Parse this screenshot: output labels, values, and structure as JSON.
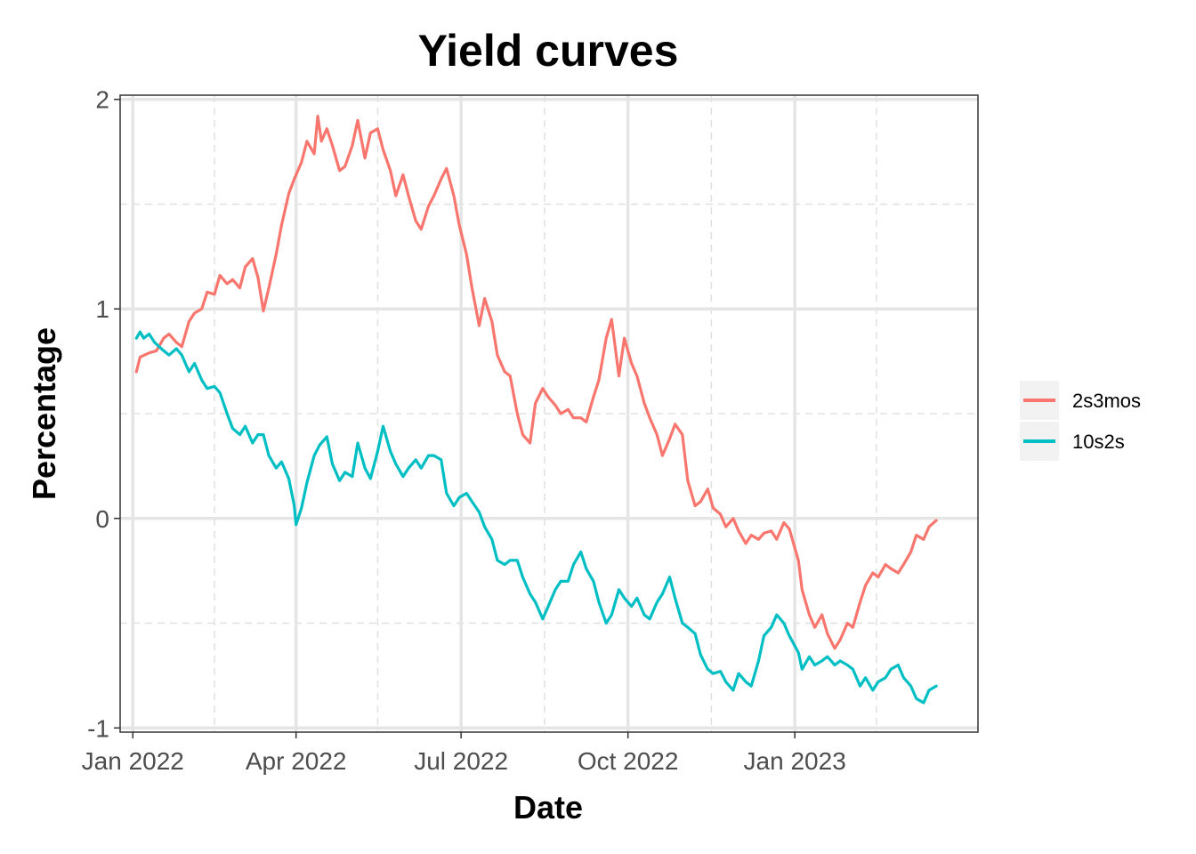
{
  "chart_data": {
    "type": "line",
    "title": "Yield curves",
    "xlabel": "Date",
    "ylabel": "Percentage",
    "x_range": [
      "2021-12-25",
      "2023-04-12"
    ],
    "xlim_days": [
      0,
      473
    ],
    "ylim": [
      -1.02,
      2.02
    ],
    "x_ticks": [
      {
        "label": "Jan 2022",
        "date": "2022-01-01"
      },
      {
        "label": "Apr 2022",
        "date": "2022-04-01"
      },
      {
        "label": "Jul 2022",
        "date": "2022-07-01"
      },
      {
        "label": "Oct 2022",
        "date": "2022-10-01"
      },
      {
        "label": "Jan 2023",
        "date": "2023-01-01"
      }
    ],
    "x_minor_ticks": [
      "2022-02-15",
      "2022-05-16",
      "2022-08-16",
      "2022-11-16",
      "2023-02-15"
    ],
    "y_ticks": [
      {
        "label": "-1",
        "value": -1
      },
      {
        "label": "0",
        "value": 0
      },
      {
        "label": "1",
        "value": 1
      },
      {
        "label": "2",
        "value": 2
      }
    ],
    "y_minor_ticks": [
      -0.5,
      0.5,
      1.5
    ],
    "grid": true,
    "legend_position": "right",
    "series": [
      {
        "name": "2s3mos",
        "color": "#F8766D",
        "points": [
          [
            "2022-01-03",
            0.7
          ],
          [
            "2022-01-05",
            0.77
          ],
          [
            "2022-01-10",
            0.79
          ],
          [
            "2022-01-14",
            0.8
          ],
          [
            "2022-01-18",
            0.86
          ],
          [
            "2022-01-21",
            0.88
          ],
          [
            "2022-01-25",
            0.84
          ],
          [
            "2022-01-28",
            0.82
          ],
          [
            "2022-02-01",
            0.94
          ],
          [
            "2022-02-04",
            0.98
          ],
          [
            "2022-02-08",
            1.0
          ],
          [
            "2022-02-11",
            1.08
          ],
          [
            "2022-02-15",
            1.07
          ],
          [
            "2022-02-18",
            1.16
          ],
          [
            "2022-02-22",
            1.12
          ],
          [
            "2022-02-25",
            1.14
          ],
          [
            "2022-03-01",
            1.1
          ],
          [
            "2022-03-04",
            1.2
          ],
          [
            "2022-03-08",
            1.24
          ],
          [
            "2022-03-11",
            1.15
          ],
          [
            "2022-03-14",
            0.99
          ],
          [
            "2022-03-17",
            1.1
          ],
          [
            "2022-03-21",
            1.26
          ],
          [
            "2022-03-24",
            1.4
          ],
          [
            "2022-03-28",
            1.55
          ],
          [
            "2022-03-31",
            1.62
          ],
          [
            "2022-04-04",
            1.7
          ],
          [
            "2022-04-07",
            1.8
          ],
          [
            "2022-04-11",
            1.74
          ],
          [
            "2022-04-13",
            1.92
          ],
          [
            "2022-04-15",
            1.8
          ],
          [
            "2022-04-18",
            1.86
          ],
          [
            "2022-04-21",
            1.78
          ],
          [
            "2022-04-25",
            1.66
          ],
          [
            "2022-04-28",
            1.68
          ],
          [
            "2022-05-02",
            1.78
          ],
          [
            "2022-05-05",
            1.9
          ],
          [
            "2022-05-09",
            1.72
          ],
          [
            "2022-05-12",
            1.84
          ],
          [
            "2022-05-16",
            1.86
          ],
          [
            "2022-05-19",
            1.76
          ],
          [
            "2022-05-23",
            1.66
          ],
          [
            "2022-05-26",
            1.54
          ],
          [
            "2022-05-30",
            1.64
          ],
          [
            "2022-06-02",
            1.54
          ],
          [
            "2022-06-06",
            1.42
          ],
          [
            "2022-06-09",
            1.38
          ],
          [
            "2022-06-13",
            1.49
          ],
          [
            "2022-06-16",
            1.54
          ],
          [
            "2022-06-20",
            1.62
          ],
          [
            "2022-06-23",
            1.67
          ],
          [
            "2022-06-27",
            1.54
          ],
          [
            "2022-06-30",
            1.4
          ],
          [
            "2022-07-04",
            1.26
          ],
          [
            "2022-07-07",
            1.1
          ],
          [
            "2022-07-11",
            0.92
          ],
          [
            "2022-07-14",
            1.05
          ],
          [
            "2022-07-18",
            0.94
          ],
          [
            "2022-07-21",
            0.78
          ],
          [
            "2022-07-25",
            0.7
          ],
          [
            "2022-07-28",
            0.68
          ],
          [
            "2022-08-01",
            0.5
          ],
          [
            "2022-08-04",
            0.4
          ],
          [
            "2022-08-08",
            0.36
          ],
          [
            "2022-08-11",
            0.55
          ],
          [
            "2022-08-15",
            0.62
          ],
          [
            "2022-08-18",
            0.58
          ],
          [
            "2022-08-22",
            0.54
          ],
          [
            "2022-08-25",
            0.5
          ],
          [
            "2022-08-29",
            0.52
          ],
          [
            "2022-09-01",
            0.48
          ],
          [
            "2022-09-05",
            0.48
          ],
          [
            "2022-09-08",
            0.46
          ],
          [
            "2022-09-12",
            0.58
          ],
          [
            "2022-09-15",
            0.66
          ],
          [
            "2022-09-19",
            0.86
          ],
          [
            "2022-09-22",
            0.95
          ],
          [
            "2022-09-26",
            0.68
          ],
          [
            "2022-09-29",
            0.86
          ],
          [
            "2022-10-03",
            0.74
          ],
          [
            "2022-10-06",
            0.68
          ],
          [
            "2022-10-10",
            0.55
          ],
          [
            "2022-10-13",
            0.48
          ],
          [
            "2022-10-17",
            0.4
          ],
          [
            "2022-10-20",
            0.3
          ],
          [
            "2022-10-24",
            0.38
          ],
          [
            "2022-10-27",
            0.45
          ],
          [
            "2022-10-31",
            0.4
          ],
          [
            "2022-11-03",
            0.18
          ],
          [
            "2022-11-07",
            0.06
          ],
          [
            "2022-11-10",
            0.08
          ],
          [
            "2022-11-14",
            0.14
          ],
          [
            "2022-11-17",
            0.05
          ],
          [
            "2022-11-21",
            0.02
          ],
          [
            "2022-11-24",
            -0.04
          ],
          [
            "2022-11-28",
            0.0
          ],
          [
            "2022-12-01",
            -0.06
          ],
          [
            "2022-12-05",
            -0.12
          ],
          [
            "2022-12-08",
            -0.08
          ],
          [
            "2022-12-12",
            -0.1
          ],
          [
            "2022-12-15",
            -0.07
          ],
          [
            "2022-12-19",
            -0.06
          ],
          [
            "2022-12-22",
            -0.1
          ],
          [
            "2022-12-26",
            -0.02
          ],
          [
            "2022-12-29",
            -0.05
          ],
          [
            "2023-01-03",
            -0.2
          ],
          [
            "2023-01-05",
            -0.34
          ],
          [
            "2023-01-09",
            -0.46
          ],
          [
            "2023-01-12",
            -0.52
          ],
          [
            "2023-01-16",
            -0.46
          ],
          [
            "2023-01-19",
            -0.55
          ],
          [
            "2023-01-23",
            -0.62
          ],
          [
            "2023-01-26",
            -0.58
          ],
          [
            "2023-01-30",
            -0.5
          ],
          [
            "2023-02-02",
            -0.52
          ],
          [
            "2023-02-06",
            -0.4
          ],
          [
            "2023-02-09",
            -0.32
          ],
          [
            "2023-02-13",
            -0.26
          ],
          [
            "2023-02-16",
            -0.28
          ],
          [
            "2023-02-20",
            -0.22
          ],
          [
            "2023-02-23",
            -0.24
          ],
          [
            "2023-02-27",
            -0.26
          ],
          [
            "2023-03-02",
            -0.22
          ],
          [
            "2023-03-06",
            -0.16
          ],
          [
            "2023-03-09",
            -0.08
          ],
          [
            "2023-03-13",
            -0.1
          ],
          [
            "2023-03-16",
            -0.04
          ],
          [
            "2023-03-20",
            -0.01
          ]
        ]
      },
      {
        "name": "10s2s",
        "color": "#00BFC4",
        "points": [
          [
            "2022-01-03",
            0.86
          ],
          [
            "2022-01-05",
            0.89
          ],
          [
            "2022-01-07",
            0.86
          ],
          [
            "2022-01-10",
            0.88
          ],
          [
            "2022-01-13",
            0.84
          ],
          [
            "2022-01-18",
            0.8
          ],
          [
            "2022-01-21",
            0.78
          ],
          [
            "2022-01-25",
            0.81
          ],
          [
            "2022-01-28",
            0.78
          ],
          [
            "2022-02-01",
            0.7
          ],
          [
            "2022-02-04",
            0.74
          ],
          [
            "2022-02-08",
            0.66
          ],
          [
            "2022-02-11",
            0.62
          ],
          [
            "2022-02-15",
            0.63
          ],
          [
            "2022-02-18",
            0.6
          ],
          [
            "2022-02-22",
            0.5
          ],
          [
            "2022-02-25",
            0.43
          ],
          [
            "2022-03-01",
            0.4
          ],
          [
            "2022-03-04",
            0.44
          ],
          [
            "2022-03-08",
            0.36
          ],
          [
            "2022-03-11",
            0.4
          ],
          [
            "2022-03-14",
            0.4
          ],
          [
            "2022-03-17",
            0.3
          ],
          [
            "2022-03-21",
            0.24
          ],
          [
            "2022-03-24",
            0.27
          ],
          [
            "2022-03-28",
            0.19
          ],
          [
            "2022-03-31",
            0.06
          ],
          [
            "2022-04-01",
            -0.03
          ],
          [
            "2022-04-04",
            0.05
          ],
          [
            "2022-04-07",
            0.17
          ],
          [
            "2022-04-11",
            0.3
          ],
          [
            "2022-04-14",
            0.35
          ],
          [
            "2022-04-18",
            0.39
          ],
          [
            "2022-04-21",
            0.26
          ],
          [
            "2022-04-25",
            0.18
          ],
          [
            "2022-04-28",
            0.22
          ],
          [
            "2022-05-02",
            0.2
          ],
          [
            "2022-05-05",
            0.36
          ],
          [
            "2022-05-09",
            0.24
          ],
          [
            "2022-05-12",
            0.19
          ],
          [
            "2022-05-16",
            0.32
          ],
          [
            "2022-05-19",
            0.44
          ],
          [
            "2022-05-23",
            0.32
          ],
          [
            "2022-05-26",
            0.26
          ],
          [
            "2022-05-30",
            0.2
          ],
          [
            "2022-06-02",
            0.24
          ],
          [
            "2022-06-06",
            0.28
          ],
          [
            "2022-06-09",
            0.24
          ],
          [
            "2022-06-13",
            0.3
          ],
          [
            "2022-06-16",
            0.3
          ],
          [
            "2022-06-20",
            0.28
          ],
          [
            "2022-06-23",
            0.12
          ],
          [
            "2022-06-27",
            0.06
          ],
          [
            "2022-06-30",
            0.1
          ],
          [
            "2022-07-04",
            0.12
          ],
          [
            "2022-07-07",
            0.08
          ],
          [
            "2022-07-11",
            0.03
          ],
          [
            "2022-07-14",
            -0.04
          ],
          [
            "2022-07-18",
            -0.1
          ],
          [
            "2022-07-21",
            -0.2
          ],
          [
            "2022-07-25",
            -0.22
          ],
          [
            "2022-07-28",
            -0.2
          ],
          [
            "2022-08-01",
            -0.2
          ],
          [
            "2022-08-04",
            -0.28
          ],
          [
            "2022-08-08",
            -0.36
          ],
          [
            "2022-08-11",
            -0.4
          ],
          [
            "2022-08-15",
            -0.48
          ],
          [
            "2022-08-18",
            -0.42
          ],
          [
            "2022-08-22",
            -0.34
          ],
          [
            "2022-08-25",
            -0.3
          ],
          [
            "2022-08-29",
            -0.3
          ],
          [
            "2022-09-01",
            -0.22
          ],
          [
            "2022-09-05",
            -0.16
          ],
          [
            "2022-09-08",
            -0.24
          ],
          [
            "2022-09-12",
            -0.3
          ],
          [
            "2022-09-15",
            -0.4
          ],
          [
            "2022-09-19",
            -0.5
          ],
          [
            "2022-09-22",
            -0.46
          ],
          [
            "2022-09-26",
            -0.34
          ],
          [
            "2022-09-29",
            -0.38
          ],
          [
            "2022-10-03",
            -0.42
          ],
          [
            "2022-10-06",
            -0.38
          ],
          [
            "2022-10-10",
            -0.46
          ],
          [
            "2022-10-13",
            -0.48
          ],
          [
            "2022-10-17",
            -0.4
          ],
          [
            "2022-10-20",
            -0.36
          ],
          [
            "2022-10-24",
            -0.28
          ],
          [
            "2022-10-27",
            -0.38
          ],
          [
            "2022-10-31",
            -0.5
          ],
          [
            "2022-11-03",
            -0.52
          ],
          [
            "2022-11-07",
            -0.55
          ],
          [
            "2022-11-10",
            -0.65
          ],
          [
            "2022-11-14",
            -0.72
          ],
          [
            "2022-11-17",
            -0.74
          ],
          [
            "2022-11-21",
            -0.73
          ],
          [
            "2022-11-24",
            -0.78
          ],
          [
            "2022-11-28",
            -0.82
          ],
          [
            "2022-12-01",
            -0.74
          ],
          [
            "2022-12-05",
            -0.78
          ],
          [
            "2022-12-08",
            -0.8
          ],
          [
            "2022-12-12",
            -0.68
          ],
          [
            "2022-12-15",
            -0.56
          ],
          [
            "2022-12-19",
            -0.52
          ],
          [
            "2022-12-22",
            -0.46
          ],
          [
            "2022-12-26",
            -0.5
          ],
          [
            "2022-12-29",
            -0.56
          ],
          [
            "2023-01-03",
            -0.64
          ],
          [
            "2023-01-05",
            -0.72
          ],
          [
            "2023-01-09",
            -0.66
          ],
          [
            "2023-01-12",
            -0.7
          ],
          [
            "2023-01-16",
            -0.68
          ],
          [
            "2023-01-19",
            -0.66
          ],
          [
            "2023-01-23",
            -0.7
          ],
          [
            "2023-01-26",
            -0.68
          ],
          [
            "2023-01-30",
            -0.7
          ],
          [
            "2023-02-02",
            -0.72
          ],
          [
            "2023-02-06",
            -0.8
          ],
          [
            "2023-02-09",
            -0.76
          ],
          [
            "2023-02-13",
            -0.82
          ],
          [
            "2023-02-16",
            -0.78
          ],
          [
            "2023-02-20",
            -0.76
          ],
          [
            "2023-02-23",
            -0.72
          ],
          [
            "2023-02-27",
            -0.7
          ],
          [
            "2023-03-02",
            -0.76
          ],
          [
            "2023-03-06",
            -0.8
          ],
          [
            "2023-03-09",
            -0.86
          ],
          [
            "2023-03-13",
            -0.88
          ],
          [
            "2023-03-16",
            -0.82
          ],
          [
            "2023-03-20",
            -0.8
          ]
        ]
      }
    ]
  }
}
